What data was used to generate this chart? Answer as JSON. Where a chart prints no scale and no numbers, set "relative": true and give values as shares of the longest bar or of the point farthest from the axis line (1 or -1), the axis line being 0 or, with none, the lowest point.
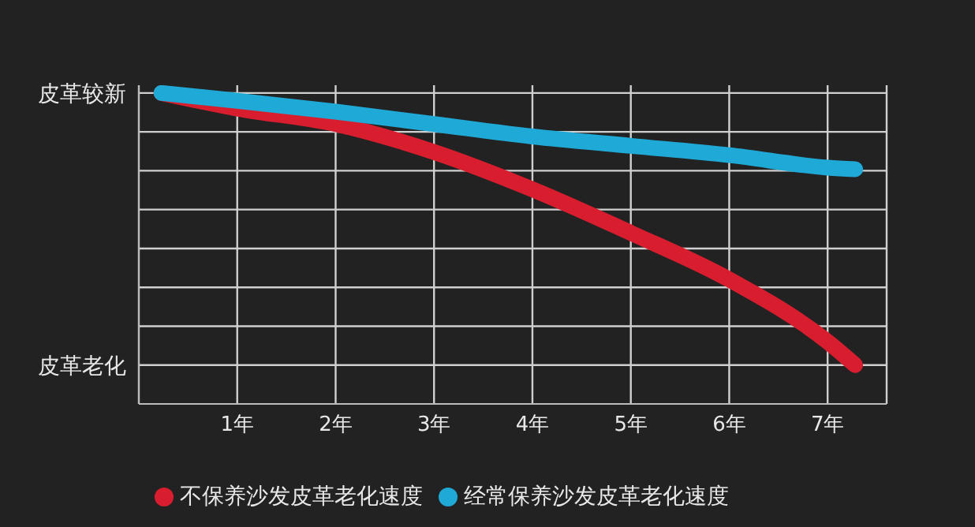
{
  "chart_data": {
    "type": "line",
    "relative": true,
    "xlim": [
      0,
      7.6
    ],
    "xticks": [
      {
        "value": 1,
        "label": "1年"
      },
      {
        "value": 2,
        "label": "2年"
      },
      {
        "value": 3,
        "label": "3年"
      },
      {
        "value": 4,
        "label": "4年"
      },
      {
        "value": 5,
        "label": "5年"
      },
      {
        "value": 6,
        "label": "6年"
      },
      {
        "value": 7,
        "label": "7年"
      }
    ],
    "annotations": [
      "皮革较新",
      "皮革老化"
    ],
    "grid": true,
    "legend": "bottom",
    "marker": "none",
    "line_style": "solid",
    "series": [
      {
        "name": "不保养沙发皮革老化速度",
        "color": "#d81e2e",
        "x": [
          0.23,
          1,
          2,
          3,
          4,
          5,
          6,
          7,
          7.28
        ],
        "values": [
          1,
          0.95,
          0.9,
          0.81,
          0.69,
          0.55,
          0.4,
          0.2,
          0.125
        ]
      },
      {
        "name": "经常保养沙发皮革老化速度",
        "color": "#1fa9d6",
        "x": [
          0.23,
          1,
          2,
          3,
          4,
          5,
          6,
          7,
          7.28
        ],
        "values": [
          1,
          0.975,
          0.94,
          0.9,
          0.86,
          0.83,
          0.8,
          0.76,
          0.755
        ]
      }
    ]
  }
}
